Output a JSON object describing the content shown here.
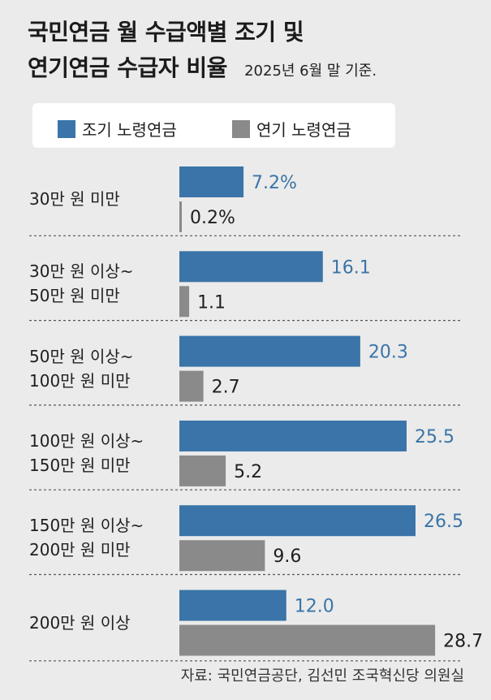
{
  "title": {
    "line1": "국민연금 월 수급액별 조기 및",
    "line2": "연기연금 수급자 비율",
    "subtitle": "2025년 6월 말 기준."
  },
  "legend": {
    "items": [
      "조기 노령연금",
      "연기 노령연금"
    ]
  },
  "colors": {
    "early": "#3a74a8",
    "delayed": "#8a8a8a",
    "early_label": "#3a74a8",
    "delayed_label": "#1f1f1f",
    "background": "#ebebeb"
  },
  "chart_data": {
    "type": "bar",
    "orientation": "horizontal",
    "categories": [
      [
        "30만 원 미만"
      ],
      [
        "30만 원 이상~",
        "50만 원 미만"
      ],
      [
        "50만 원 이상~",
        "100만 원 미만"
      ],
      [
        "100만 원 이상~",
        "150만 원 미만"
      ],
      [
        "150만 원 이상~",
        "200만 원 미만"
      ],
      [
        "200만 원 이상"
      ]
    ],
    "series": [
      {
        "name": "조기 노령연금",
        "values": [
          7.2,
          16.1,
          20.3,
          25.5,
          26.5,
          12.0
        ],
        "labels": [
          "7.2%",
          "16.1",
          "20.3",
          "25.5",
          "26.5",
          "12.0"
        ]
      },
      {
        "name": "연기 노령연금",
        "values": [
          0.2,
          1.1,
          2.7,
          5.2,
          9.6,
          28.7
        ],
        "labels": [
          "0.2%",
          "1.1",
          "2.7",
          "5.2",
          "9.6",
          "28.7"
        ]
      }
    ],
    "xlim": [
      0,
      30
    ],
    "grid": false,
    "legend_position": "top"
  },
  "source": "자료: 국민연금공단, 김선민 조국혁신당 의원실"
}
